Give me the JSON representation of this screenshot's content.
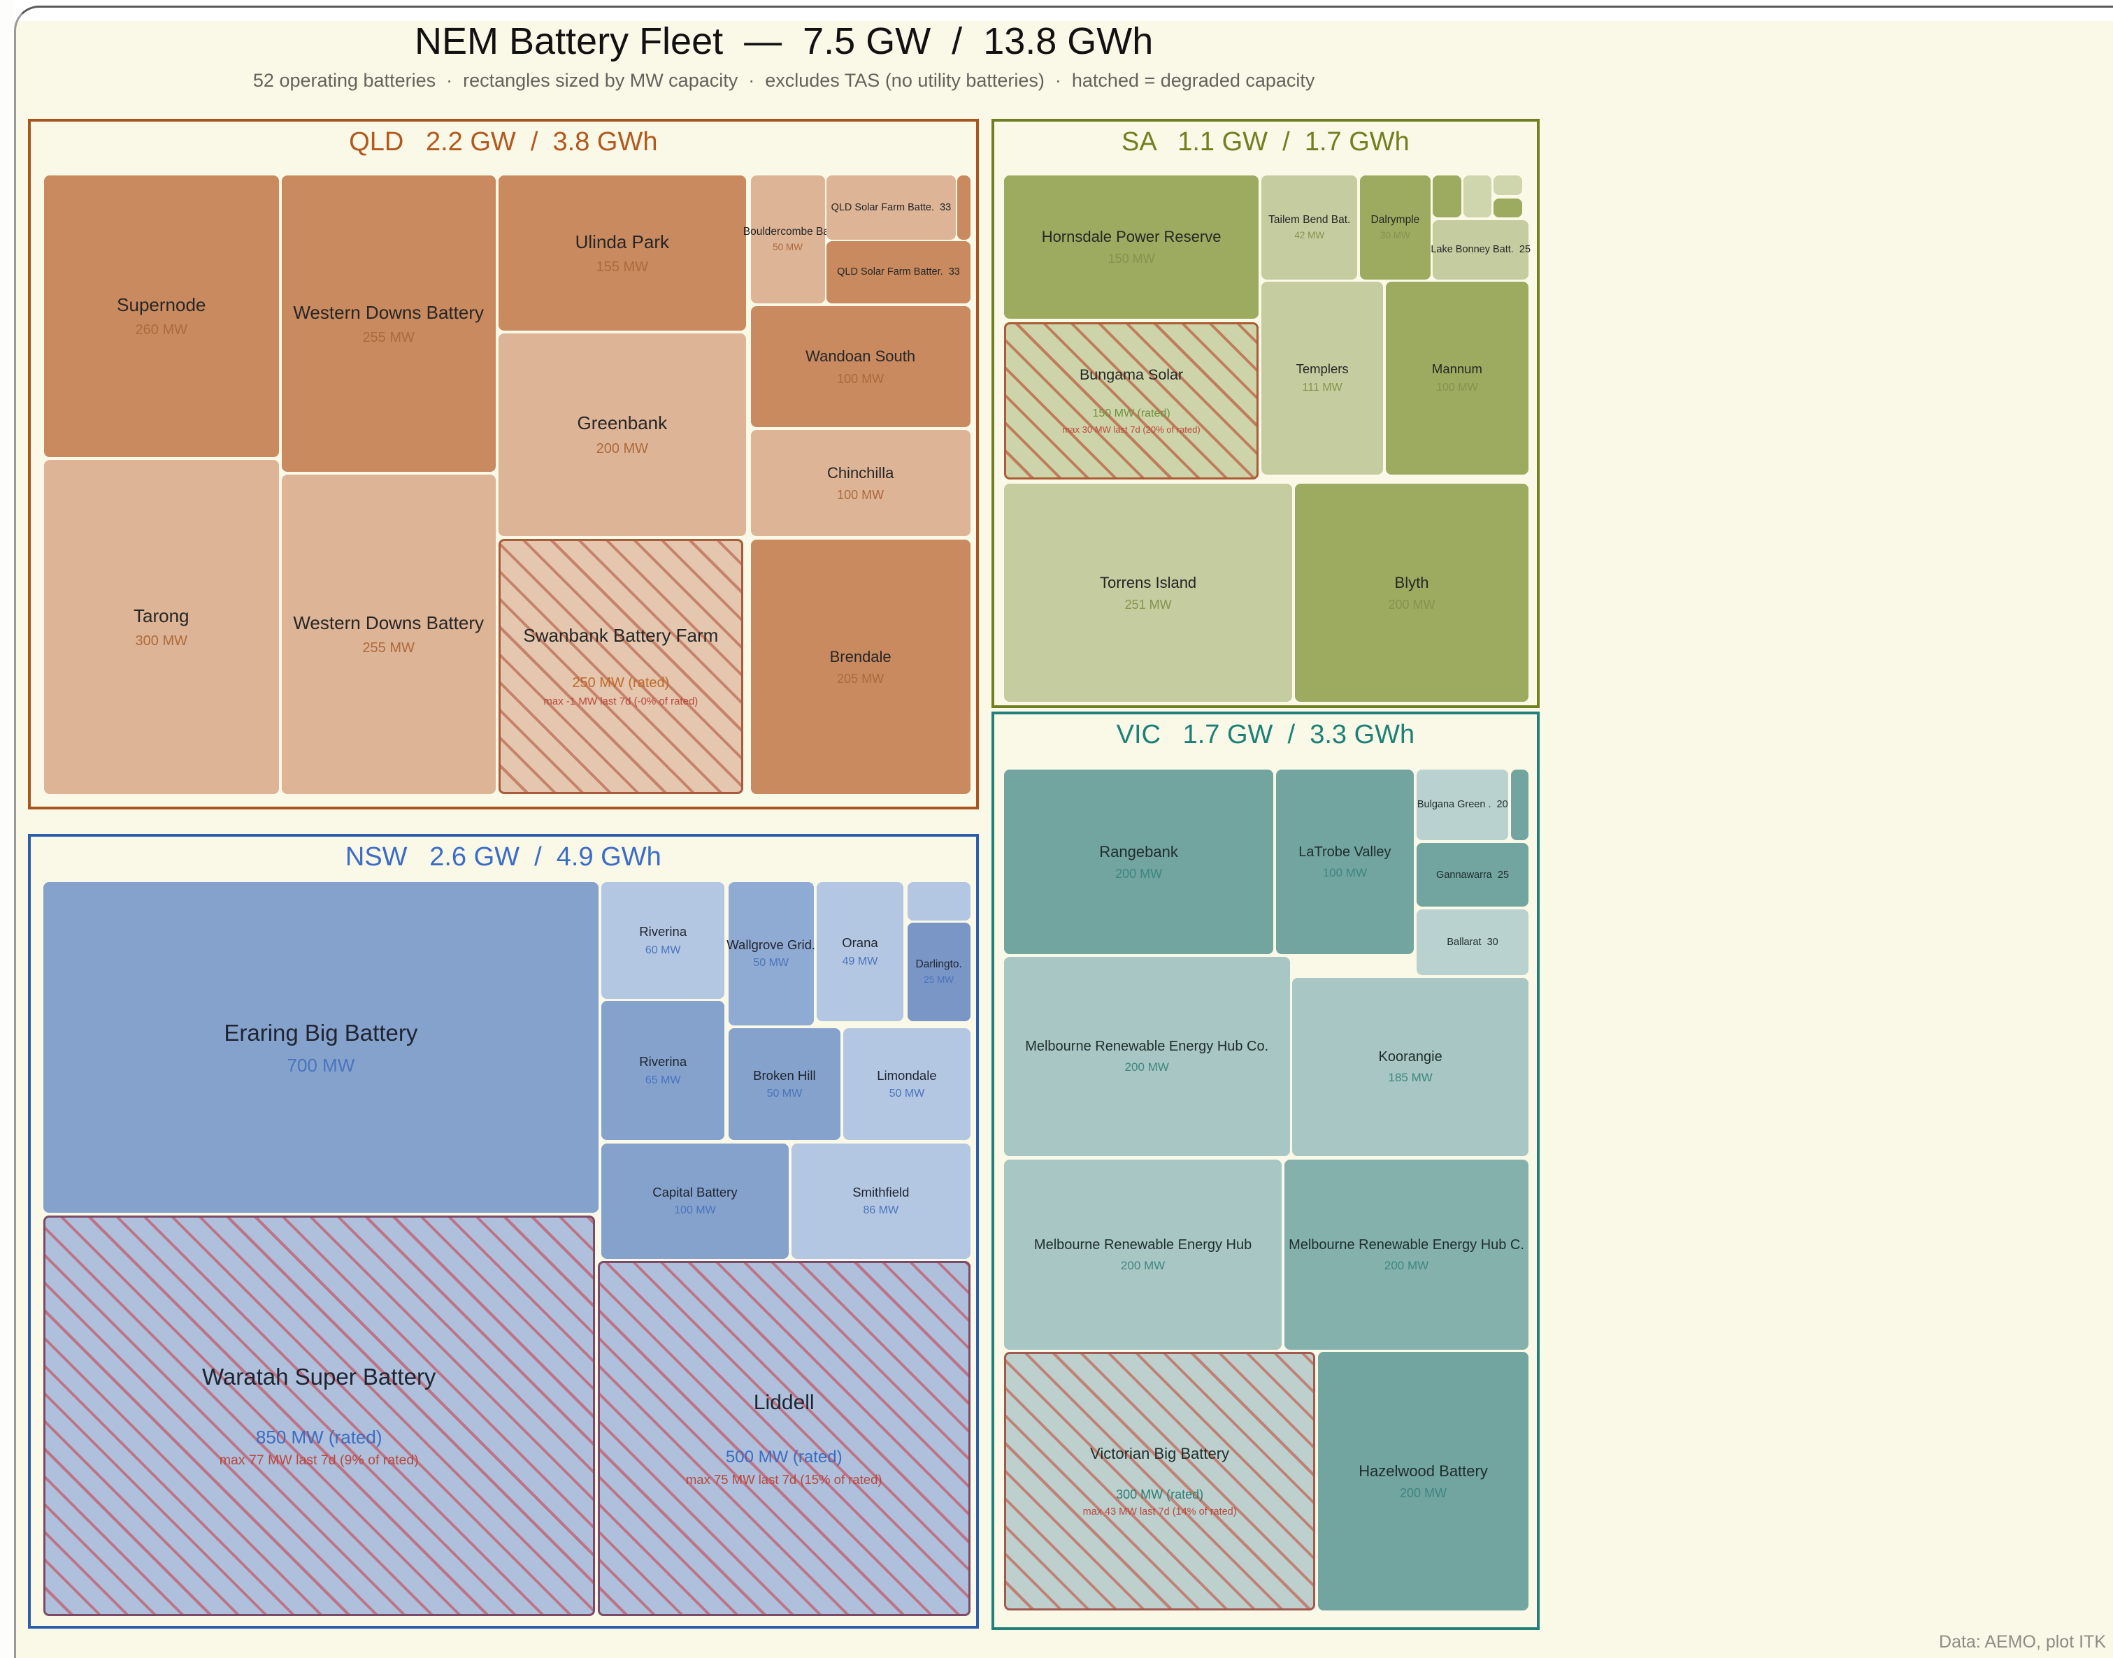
{
  "chart_data": {
    "type": "treemap",
    "title": "NEM Battery Fleet  —  7.5 GW  /  13.8 GWh",
    "subtitle": "52 operating batteries  ·  rectangles sized by MW capacity  ·  excludes TAS (no utility batteries)  ·  hatched = degraded capacity",
    "footer": "Data: AEMO, plot ITK",
    "fleet": {
      "gw": 7.5,
      "gwh": 13.8,
      "operating_batteries": 52,
      "sizing": "MW capacity",
      "hatched_meaning": "degraded capacity"
    },
    "states": [
      {
        "id": "qld",
        "header": "QLD   2.2 GW  /  3.8 GWh",
        "gw": 2.2,
        "gwh": 3.8,
        "colors": {
          "border": "#a9561e",
          "header": "#b2591d",
          "name": "#262626",
          "value": "#ad6a3c",
          "rated": "#bd6a2e",
          "warn": "#b9473d",
          "hatch_line": "#c6826a",
          "hatch_border": "#a85c3a"
        },
        "palette": {
          "mid": "#c98a5f",
          "light": "#ddb496",
          "hatch": "#e4c7ae"
        },
        "box": {
          "l": 1.32,
          "t": 7.17,
          "w": 45.0,
          "h": 41.65
        },
        "content": {
          "l": 1.32,
          "t": 7.89,
          "w": 98.09,
          "h": 90.28
        },
        "cells": [
          {
            "name": "Supernode",
            "value": "260 MW",
            "mw": 260,
            "l": 0.1,
            "t": 0,
            "w": 25.3,
            "h": 45.5,
            "shade": "mid",
            "tier": "lg"
          },
          {
            "name": "Tarong",
            "value": "300 MW",
            "mw": 300,
            "l": 0.1,
            "t": 46.0,
            "w": 25.3,
            "h": 54.0,
            "shade": "light",
            "tier": "lg"
          },
          {
            "name": "Western Downs Battery",
            "value": "255 MW",
            "mw": 255,
            "l": 25.7,
            "t": 0,
            "w": 23.1,
            "h": 47.9,
            "shade": "mid",
            "tier": "lg"
          },
          {
            "name": "Western Downs Battery",
            "value": "255 MW",
            "mw": 255,
            "l": 25.7,
            "t": 48.3,
            "w": 23.1,
            "h": 51.7,
            "shade": "light",
            "tier": "lg"
          },
          {
            "name": "Ulinda Park",
            "value": "155 MW",
            "mw": 155,
            "l": 49.1,
            "t": 0,
            "w": 26.7,
            "h": 25.1,
            "shade": "mid",
            "tier": "lg"
          },
          {
            "name": "Greenbank",
            "value": "200 MW",
            "mw": 200,
            "l": 49.1,
            "t": 25.5,
            "w": 26.7,
            "h": 32.8,
            "shade": "light",
            "tier": "lg"
          },
          {
            "name": "Swanbank Battery Farm",
            "value": "250 MW (rated)",
            "mw": 250,
            "rated": true,
            "warn": "max -1 MW last 7d (-0% of rated)",
            "hatched": true,
            "l": 49.1,
            "t": 58.7,
            "w": 26.4,
            "h": 41.3,
            "shade": "hatch",
            "tier": "lg"
          },
          {
            "name": "Bouldercombe Ba.",
            "value": "50 MW",
            "mw": 50,
            "l": 76.3,
            "t": 0,
            "w": 8.0,
            "h": 20.6,
            "shade": "light",
            "tier": "xs"
          },
          {
            "name": "QLD Solar Farm Batte.",
            "value": "33",
            "mw": 33,
            "inline": true,
            "l": 84.5,
            "t": 0,
            "w": 13.9,
            "h": 10.4,
            "shade": "light",
            "tier": "xxs"
          },
          {
            "name": "",
            "value": "",
            "mw": null,
            "l": 98.6,
            "t": 0,
            "w": 1.4,
            "h": 10.4,
            "shade": "mid",
            "tier": "xxs"
          },
          {
            "name": "QLD Solar Farm Batter.",
            "value": "33",
            "mw": 33,
            "inline": true,
            "l": 84.5,
            "t": 10.6,
            "w": 15.5,
            "h": 10.0,
            "shade": "mid",
            "tier": "xxs"
          },
          {
            "name": "Wandoan South",
            "value": "100 MW",
            "mw": 100,
            "l": 76.3,
            "t": 21.1,
            "w": 23.7,
            "h": 19.6,
            "shade": "mid",
            "tier": "md"
          },
          {
            "name": "Chinchilla",
            "value": "100 MW",
            "mw": 100,
            "l": 76.3,
            "t": 41.1,
            "w": 23.7,
            "h": 17.2,
            "shade": "light",
            "tier": "md"
          },
          {
            "name": "Brendale",
            "value": "205 MW",
            "mw": 205,
            "l": 76.3,
            "t": 58.9,
            "w": 23.7,
            "h": 41.1,
            "shade": "mid",
            "tier": "md"
          }
        ]
      },
      {
        "id": "sa",
        "header": "SA   1.1 GW  /  1.7 GWh",
        "gw": 1.1,
        "gwh": 1.7,
        "colors": {
          "border": "#707f1f",
          "header": "#70801f",
          "name": "#262626",
          "value": "#85944c",
          "rated": "#6f8f3f",
          "warn": "#b9473d",
          "hatch_line": "#c07d5e",
          "hatch_border": "#ab5c34"
        },
        "palette": {
          "mid": "#9cab5f",
          "pale": "#c5cc9f",
          "light": "#cfd5ac",
          "hatch": "#ced4a9"
        },
        "box": {
          "l": 46.92,
          "t": 7.17,
          "w": 25.94,
          "h": 35.54
        },
        "content": {
          "l": 1.79,
          "t": 9.25,
          "w": 96.68,
          "h": 90.15
        },
        "cells": [
          {
            "name": "Hornsdale Power Reserve",
            "value": "150 MW",
            "mw": 150,
            "l": 0,
            "t": 0,
            "w": 48.6,
            "h": 27.2,
            "shade": "mid",
            "tier": "md"
          },
          {
            "name": "Bungama Solar",
            "value": "150 MW (rated)",
            "mw": 150,
            "rated": true,
            "warn": "max 30 MW last 7d (20% of rated)",
            "hatched": true,
            "l": 0,
            "t": 27.9,
            "w": 48.6,
            "h": 29.8,
            "shade": "hatch",
            "tier": "mdr"
          },
          {
            "name": "Torrens Island",
            "value": "251 MW",
            "mw": 251,
            "l": 0,
            "t": 58.6,
            "w": 55.0,
            "h": 41.4,
            "shade": "pale",
            "tier": "md"
          },
          {
            "name": "Blyth",
            "value": "200 MW",
            "mw": 200,
            "l": 55.5,
            "t": 58.6,
            "w": 44.5,
            "h": 41.4,
            "shade": "mid",
            "tier": "md"
          },
          {
            "name": "Tailem Bend Bat.",
            "value": "42 MW",
            "mw": 42,
            "l": 49.1,
            "t": 0,
            "w": 18.3,
            "h": 19.7,
            "shade": "pale",
            "tier": "xs"
          },
          {
            "name": "Dalrymple",
            "value": "30 MW",
            "mw": 30,
            "l": 67.9,
            "t": 0,
            "w": 13.4,
            "h": 19.7,
            "shade": "mid",
            "tier": "xs"
          },
          {
            "name": "",
            "value": "",
            "mw": null,
            "l": 81.8,
            "t": 0,
            "w": 5.4,
            "h": 7.9,
            "shade": "mid",
            "tier": "xxs"
          },
          {
            "name": "",
            "value": "",
            "mw": null,
            "l": 87.6,
            "t": 0,
            "w": 5.4,
            "h": 7.9,
            "shade": "light",
            "tier": "xxs"
          },
          {
            "name": "",
            "value": "",
            "mw": null,
            "l": 93.4,
            "t": 0,
            "w": 5.4,
            "h": 3.7,
            "shade": "light",
            "tier": "xxs"
          },
          {
            "name": "",
            "value": "",
            "mw": null,
            "l": 93.4,
            "t": 4.3,
            "w": 5.4,
            "h": 3.6,
            "shade": "mid",
            "tier": "xxs"
          },
          {
            "name": "Lake Bonney Batt.",
            "value": "25",
            "mw": 25,
            "inline": true,
            "l": 81.8,
            "t": 8.5,
            "w": 18.2,
            "h": 11.2,
            "shade": "pale",
            "tier": "xxs"
          },
          {
            "name": "Templers",
            "value": "111 MW",
            "mw": 111,
            "l": 49.1,
            "t": 20.1,
            "w": 23.2,
            "h": 36.7,
            "shade": "pale",
            "tier": "sm"
          },
          {
            "name": "Mannum",
            "value": "100 MW",
            "mw": 100,
            "l": 72.8,
            "t": 20.1,
            "w": 27.2,
            "h": 36.7,
            "shade": "mid",
            "tier": "sm"
          }
        ]
      },
      {
        "id": "nsw",
        "header": "NSW   2.6 GW  /  4.9 GWh",
        "gw": 2.6,
        "gwh": 4.9,
        "colors": {
          "border": "#2d5dad",
          "header": "#3b6cc7",
          "name": "#1f2430",
          "value": "#4a74bd",
          "rated": "#3f6cc0",
          "warn": "#b9473d",
          "hatch_line": "#bd7487",
          "hatch_border": "#7b4a68"
        },
        "palette": {
          "mid": "#84a2cc",
          "mid2": "#90abd3",
          "pale": "#b4c7e2",
          "dark": "#7996c6",
          "hatch": "#aec0db"
        },
        "box": {
          "l": 1.32,
          "t": 50.3,
          "w": 45.0,
          "h": 47.93
        },
        "content": {
          "l": 1.32,
          "t": 5.72,
          "w": 98.09,
          "h": 93.05
        },
        "cells": [
          {
            "name": "Eraring Big Battery",
            "value": "700 MW",
            "mw": 700,
            "l": 0,
            "t": 0,
            "w": 59.9,
            "h": 45.1,
            "shade": "mid",
            "tier": "xl"
          },
          {
            "name": "Waratah Super Battery",
            "value": "850 MW (rated)",
            "mw": 850,
            "rated": true,
            "warn": "max 77 MW last 7d (9% of rated)",
            "hatched": true,
            "l": 0,
            "t": 45.4,
            "w": 59.5,
            "h": 54.6,
            "shade": "hatch",
            "tier": "xl"
          },
          {
            "name": "Riverina",
            "value": "60 MW",
            "mw": 60,
            "l": 60.2,
            "t": 0,
            "w": 13.3,
            "h": 15.9,
            "shade": "pale",
            "tier": "sm"
          },
          {
            "name": "Riverina",
            "value": "65 MW",
            "mw": 65,
            "l": 60.2,
            "t": 16.2,
            "w": 13.3,
            "h": 19.0,
            "shade": "mid",
            "tier": "sm"
          },
          {
            "name": "Wallgrove Grid.",
            "value": "50 MW",
            "mw": 50,
            "l": 73.9,
            "t": 0,
            "w": 9.2,
            "h": 19.5,
            "shade": "mid2",
            "tier": "sm"
          },
          {
            "name": "Orana",
            "value": "49 MW",
            "mw": 49,
            "l": 83.4,
            "t": 0,
            "w": 9.4,
            "h": 19.0,
            "shade": "pale",
            "tier": "sm"
          },
          {
            "name": "",
            "value": "",
            "mw": null,
            "l": 93.2,
            "t": 0,
            "w": 6.8,
            "h": 5.3,
            "shade": "pale",
            "tier": "xxs"
          },
          {
            "name": "Darlingto.",
            "value": "25 MW",
            "mw": 25,
            "l": 93.2,
            "t": 5.6,
            "w": 6.8,
            "h": 13.4,
            "shade": "dark",
            "tier": "xs"
          },
          {
            "name": "Broken Hill",
            "value": "50 MW",
            "mw": 50,
            "l": 73.9,
            "t": 19.9,
            "w": 12.1,
            "h": 15.3,
            "shade": "mid",
            "tier": "sm"
          },
          {
            "name": "Limondale",
            "value": "50 MW",
            "mw": 50,
            "l": 86.3,
            "t": 19.9,
            "w": 13.7,
            "h": 15.3,
            "shade": "pale",
            "tier": "sm"
          },
          {
            "name": "Capital Battery",
            "value": "100 MW",
            "mw": 100,
            "l": 60.2,
            "t": 35.6,
            "w": 20.2,
            "h": 15.7,
            "shade": "mid",
            "tier": "sm"
          },
          {
            "name": "Smithfield",
            "value": "86 MW",
            "mw": 86,
            "l": 80.7,
            "t": 35.6,
            "w": 19.3,
            "h": 15.7,
            "shade": "pale",
            "tier": "sm"
          },
          {
            "name": "Liddell",
            "value": "500 MW (rated)",
            "mw": 500,
            "rated": true,
            "warn": "max 75 MW last 7d (15% of rated)",
            "hatched": true,
            "l": 59.8,
            "t": 51.6,
            "w": 40.2,
            "h": 48.4,
            "shade": "hatch",
            "tier": "xl2"
          }
        ]
      },
      {
        "id": "vic",
        "header": "VIC   1.7 GW  /  3.3 GWh",
        "gw": 1.7,
        "gwh": 3.3,
        "colors": {
          "border": "#21807a",
          "header": "#1d8078",
          "name": "#1f2e2c",
          "value": "#3f8680",
          "rated": "#2e7d74",
          "warn": "#b9473d",
          "hatch_line": "#c08176",
          "hatch_border": "#a05a50"
        },
        "palette": {
          "mid": "#72a4a0",
          "mid2": "#85b1ad",
          "pale": "#a8c6c3",
          "pale2": "#bad2cf",
          "hatch": "#bdd0cd"
        },
        "box": {
          "l": 46.92,
          "t": 42.92,
          "w": 25.94,
          "h": 55.4
        },
        "content": {
          "l": 1.79,
          "t": 6.01,
          "w": 96.68,
          "h": 92.92
        },
        "cells": [
          {
            "name": "Rangebank",
            "value": "200 MW",
            "mw": 200,
            "l": 0,
            "t": 0,
            "w": 51.4,
            "h": 21.8,
            "shade": "mid",
            "tier": "md"
          },
          {
            "name": "LaTrobe Valley",
            "value": "100 MW",
            "mw": 100,
            "l": 51.9,
            "t": 0,
            "w": 26.2,
            "h": 21.8,
            "shade": "mid",
            "tier": "smv"
          },
          {
            "name": "Bulgana Green .",
            "value": "20",
            "mw": 20,
            "inline": true,
            "l": 78.7,
            "t": 0,
            "w": 17.5,
            "h": 8.4,
            "shade": "pale2",
            "tier": "xxs"
          },
          {
            "name": "",
            "value": "",
            "mw": null,
            "l": 96.7,
            "t": 0,
            "w": 3.3,
            "h": 8.4,
            "shade": "mid",
            "tier": "xxs"
          },
          {
            "name": "Gannawarra",
            "value": "25",
            "mw": 25,
            "inline": true,
            "l": 78.7,
            "t": 8.7,
            "w": 21.3,
            "h": 7.5,
            "shade": "mid",
            "tier": "xxs"
          },
          {
            "name": "Ballarat",
            "value": "30",
            "mw": 30,
            "inline": true,
            "l": 78.7,
            "t": 16.5,
            "w": 21.3,
            "h": 7.8,
            "shade": "pale2",
            "tier": "xxs"
          },
          {
            "name": "Melbourne Renewable Energy Hub Co.",
            "value": "200 MW",
            "mw": 200,
            "l": 0,
            "t": 22.1,
            "w": 54.5,
            "h": 23.5,
            "shade": "pale",
            "tier": "smv"
          },
          {
            "name": "Koorangie",
            "value": "185 MW",
            "mw": 185,
            "l": 55.0,
            "t": 24.6,
            "w": 45.0,
            "h": 21.0,
            "shade": "pale",
            "tier": "smv"
          },
          {
            "name": "Melbourne Renewable Energy Hub",
            "value": "200 MW",
            "mw": 200,
            "l": 0,
            "t": 46.0,
            "w": 53.0,
            "h": 22.4,
            "shade": "pale",
            "tier": "smv"
          },
          {
            "name": "Melbourne Renewable Energy Hub C.",
            "value": "200 MW",
            "mw": 200,
            "l": 53.5,
            "t": 46.0,
            "w": 46.5,
            "h": 22.4,
            "shade": "mid2",
            "tier": "smv"
          },
          {
            "name": "Victorian Big Battery",
            "value": "300 MW (rated)",
            "mw": 300,
            "rated": true,
            "warn": "max 43 MW last 7d (14% of rated)",
            "hatched": true,
            "l": 0,
            "t": 68.7,
            "w": 59.4,
            "h": 30.5,
            "shade": "hatch",
            "tier": "md"
          },
          {
            "name": "Hazelwood Battery",
            "value": "200 MW",
            "mw": 200,
            "l": 59.9,
            "t": 68.7,
            "w": 40.1,
            "h": 30.5,
            "shade": "mid",
            "tier": "md"
          }
        ]
      }
    ]
  }
}
